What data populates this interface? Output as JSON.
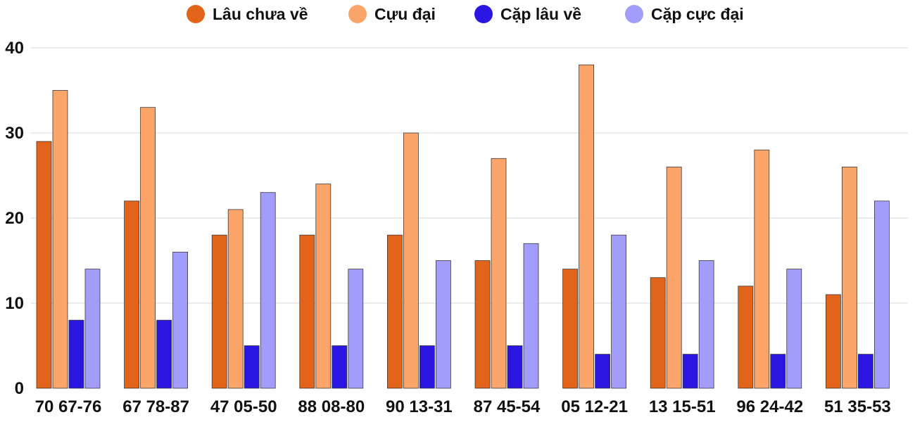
{
  "chart_data": {
    "type": "bar",
    "categories": [
      "70 67-76",
      "67 78-87",
      "47 05-50",
      "88 08-80",
      "90 13-31",
      "87 45-54",
      "05 12-21",
      "13 15-51",
      "96 24-42",
      "51 35-53"
    ],
    "series": [
      {
        "name": "Lâu chưa về",
        "color": "#e2631a",
        "values": [
          29,
          22,
          18,
          18,
          18,
          15,
          14,
          13,
          12,
          11
        ]
      },
      {
        "name": "Cựu đại",
        "color": "#fca56a",
        "values": [
          35,
          33,
          21,
          24,
          30,
          27,
          38,
          26,
          28,
          26
        ]
      },
      {
        "name": "Cặp lâu về",
        "color": "#2a16e0",
        "values": [
          8,
          8,
          5,
          5,
          5,
          5,
          4,
          4,
          4,
          4
        ]
      },
      {
        "name": "Cặp cực đại",
        "color": "#a29dfb",
        "values": [
          14,
          16,
          23,
          14,
          15,
          17,
          18,
          15,
          14,
          22
        ]
      }
    ],
    "ylim": [
      0,
      40
    ],
    "yticks": [
      0,
      10,
      20,
      30,
      40
    ],
    "grid": true,
    "legend_position": "top-center"
  }
}
